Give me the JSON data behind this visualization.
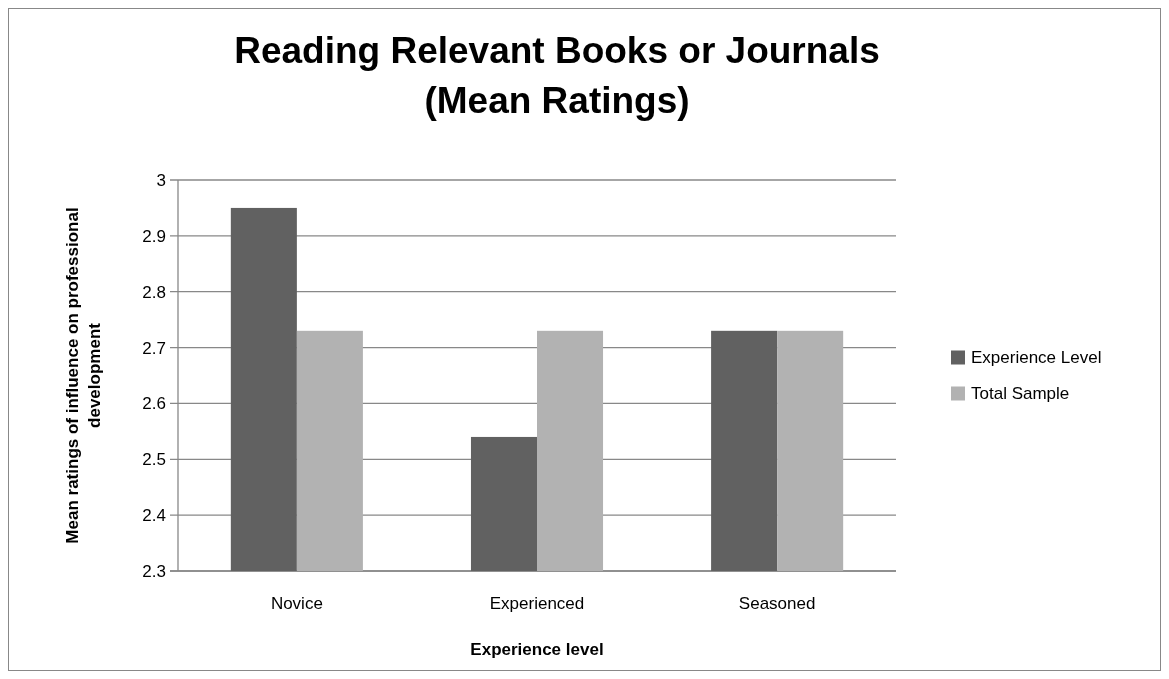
{
  "chart_data": {
    "type": "bar",
    "title": "Reading Relevant Books or Journals (Mean Ratings)",
    "xlabel": "Experience level",
    "ylabel": "Mean ratings of influence on professional development",
    "categories": [
      "Novice",
      "Experienced",
      "Seasoned"
    ],
    "series": [
      {
        "name": "Experience Level",
        "color": "#616161",
        "values": [
          2.95,
          2.54,
          2.73
        ]
      },
      {
        "name": "Total Sample",
        "color": "#b2b2b2",
        "values": [
          2.73,
          2.73,
          2.73
        ]
      }
    ],
    "ylim": [
      2.3,
      3
    ],
    "yticks": [
      {
        "value": 2.3,
        "label": "2.3"
      },
      {
        "value": 2.4,
        "label": "2.4"
      },
      {
        "value": 2.5,
        "label": "2.5"
      },
      {
        "value": 2.6,
        "label": "2.6"
      },
      {
        "value": 2.7,
        "label": "2.7"
      },
      {
        "value": 2.8,
        "label": "2.8"
      },
      {
        "value": 2.9,
        "label": "2.9"
      },
      {
        "value": 3,
        "label": "3"
      }
    ],
    "grid": "y",
    "legend": "right"
  }
}
